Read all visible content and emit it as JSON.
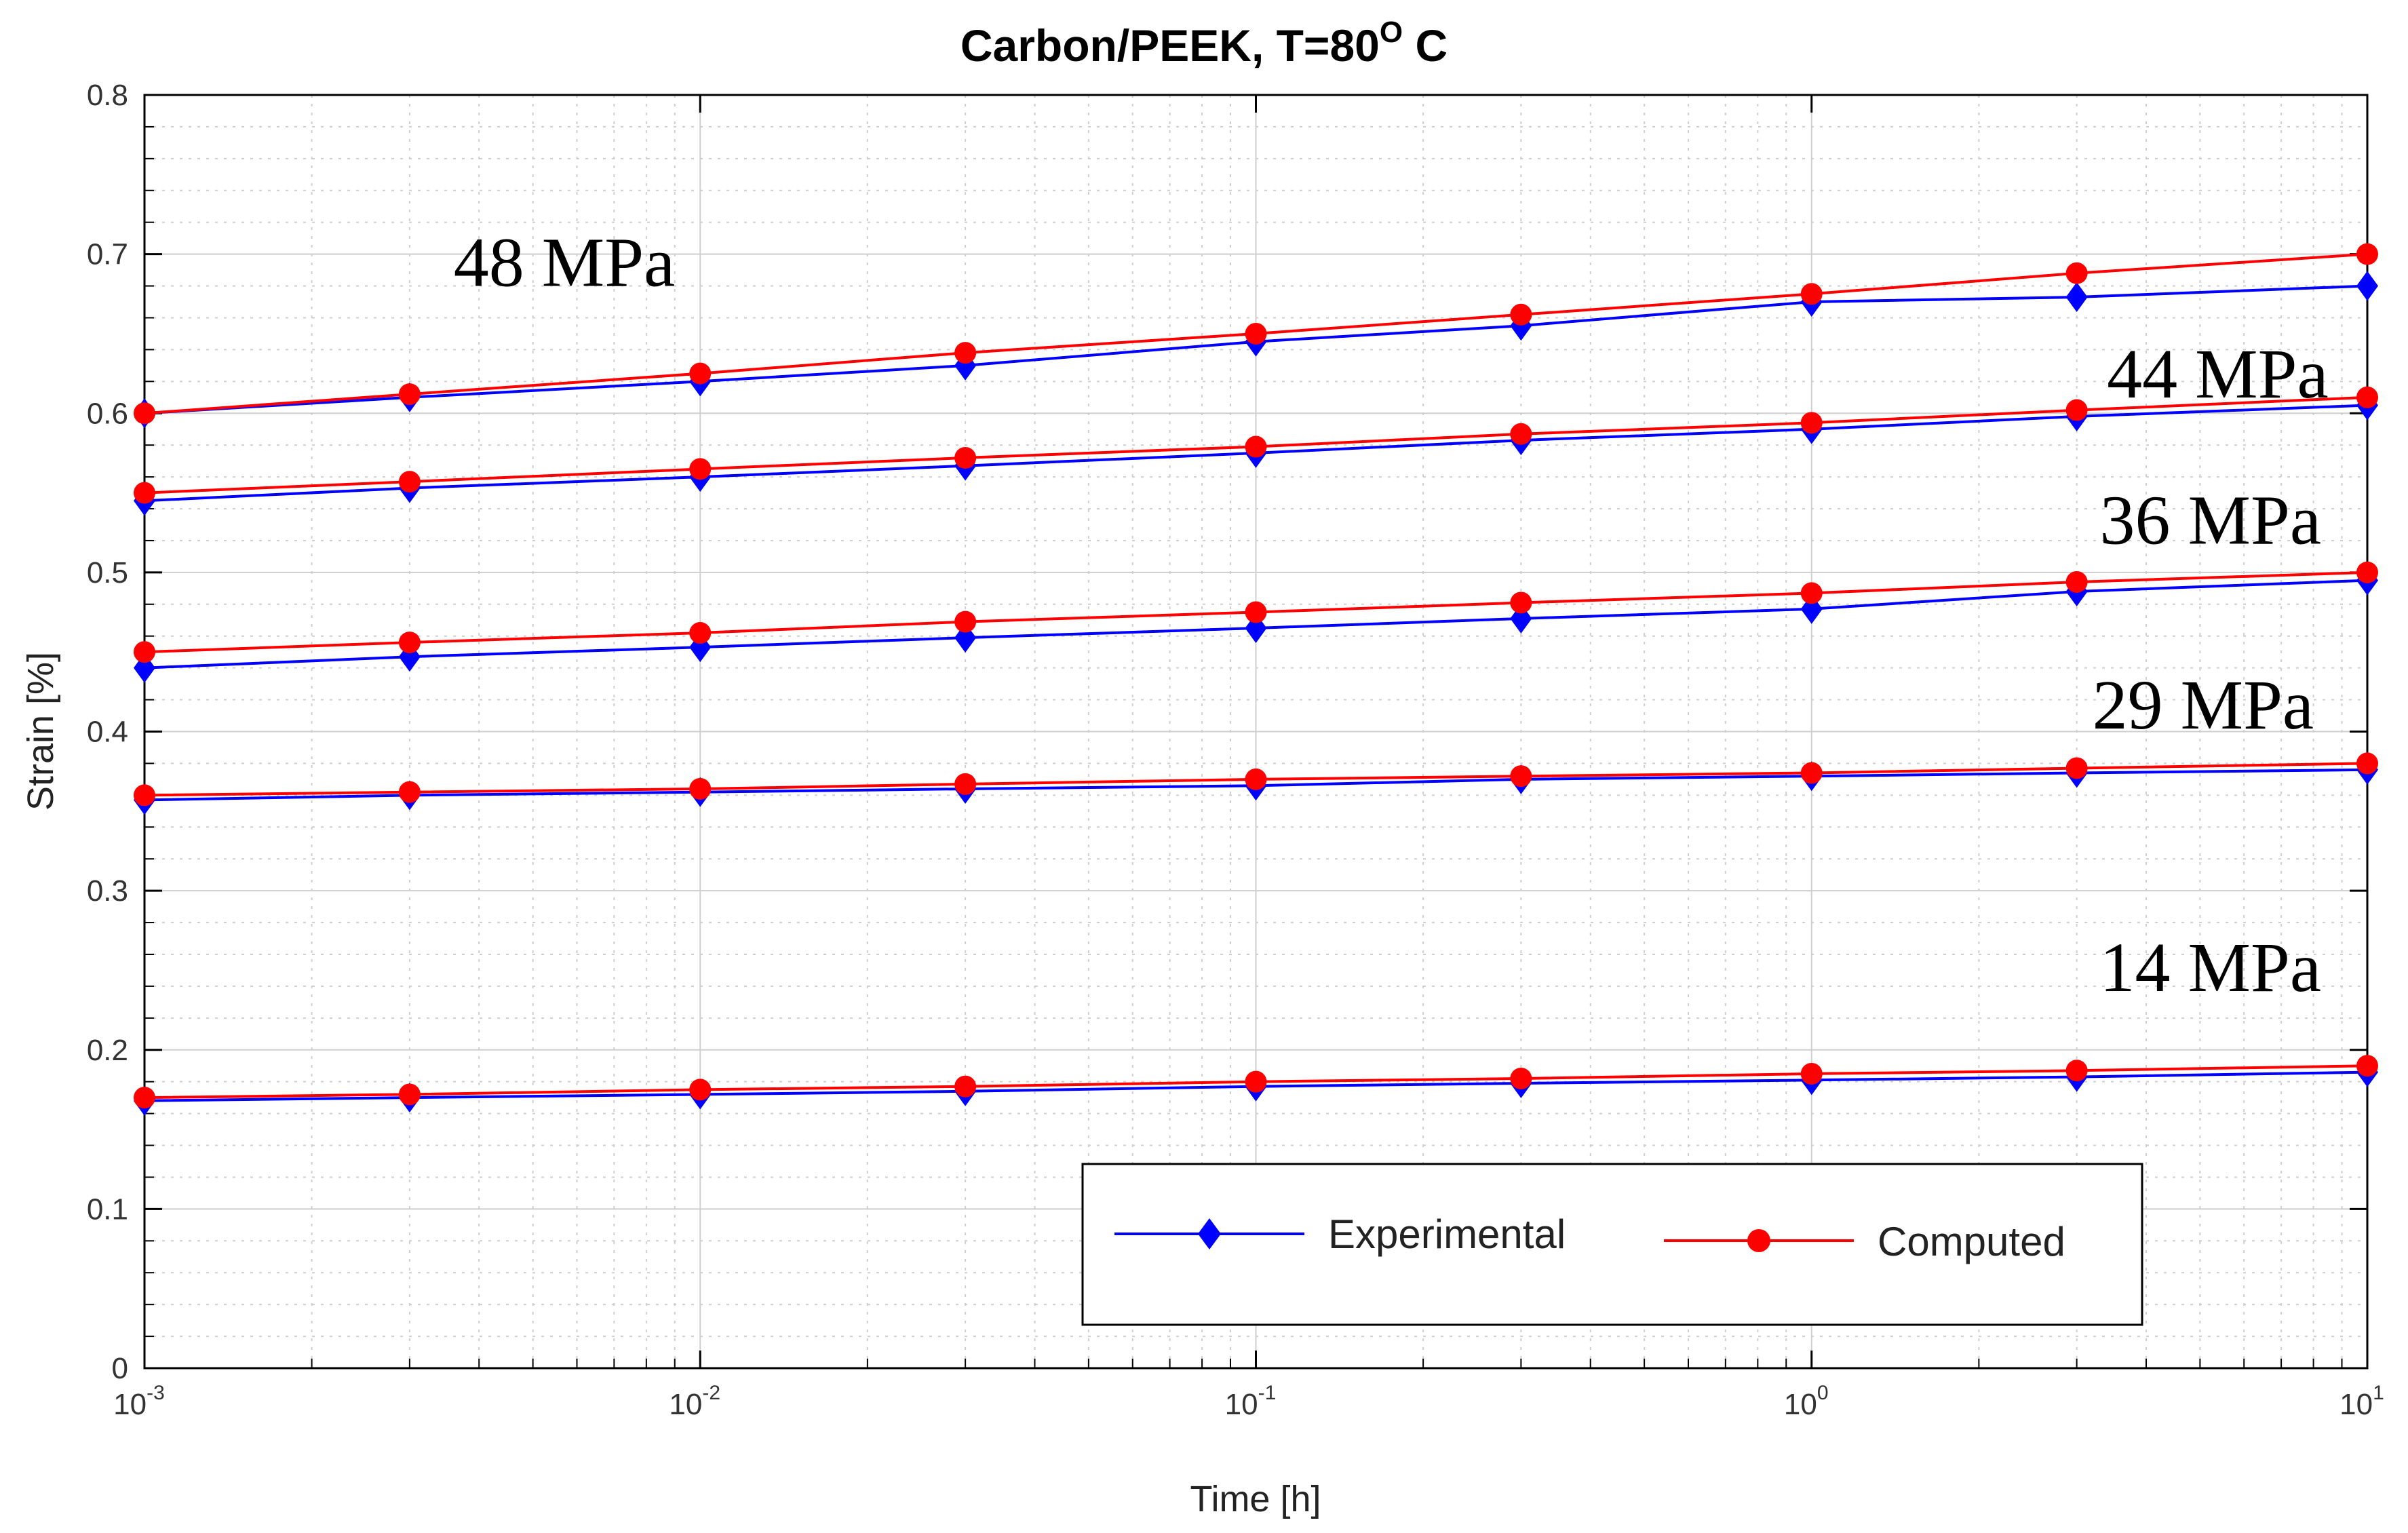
{
  "chart_data": {
    "type": "line",
    "title": "Carbon/PEEK, T=80",
    "title_superscript": "O",
    "title_suffix": " C",
    "xlabel": "Time [h]",
    "ylabel": "Strain [%]",
    "xscale": "log",
    "xlim": [
      0.001,
      10
    ],
    "ylim": [
      0,
      0.8
    ],
    "grid": true,
    "x": [
      0.001,
      0.003,
      0.01,
      0.03,
      0.1,
      0.3,
      1,
      3,
      10
    ],
    "x_ticks": [
      {
        "base": "10",
        "exp": "-3"
      },
      {
        "base": "10",
        "exp": "-2"
      },
      {
        "base": "10",
        "exp": "-1"
      },
      {
        "base": "10",
        "exp": "0"
      },
      {
        "base": "10",
        "exp": "1"
      }
    ],
    "y_ticks": [
      "0",
      "0.1",
      "0.2",
      "0.3",
      "0.4",
      "0.5",
      "0.6",
      "0.7",
      "0.8"
    ],
    "series": [
      {
        "name": "Experimental",
        "stress": "48 MPa",
        "values": [
          0.6,
          0.61,
          0.62,
          0.63,
          0.645,
          0.655,
          0.67,
          0.673,
          0.68
        ]
      },
      {
        "name": "Computed",
        "stress": "48 MPa",
        "values": [
          0.6,
          0.612,
          0.625,
          0.638,
          0.65,
          0.662,
          0.675,
          0.688,
          0.7
        ]
      },
      {
        "name": "Experimental",
        "stress": "44 MPa",
        "values": [
          0.545,
          0.553,
          0.56,
          0.567,
          0.575,
          0.583,
          0.59,
          0.598,
          0.605
        ]
      },
      {
        "name": "Computed",
        "stress": "44 MPa",
        "values": [
          0.55,
          0.557,
          0.565,
          0.572,
          0.579,
          0.587,
          0.594,
          0.602,
          0.61
        ]
      },
      {
        "name": "Experimental",
        "stress": "36 MPa",
        "values": [
          0.44,
          0.447,
          0.453,
          0.459,
          0.465,
          0.471,
          0.477,
          0.488,
          0.495
        ]
      },
      {
        "name": "Computed",
        "stress": "36 MPa",
        "values": [
          0.45,
          0.456,
          0.462,
          0.469,
          0.475,
          0.481,
          0.487,
          0.494,
          0.5
        ]
      },
      {
        "name": "Experimental",
        "stress": "29 MPa",
        "values": [
          0.357,
          0.36,
          0.362,
          0.364,
          0.366,
          0.37,
          0.372,
          0.374,
          0.376
        ]
      },
      {
        "name": "Computed",
        "stress": "29 MPa",
        "values": [
          0.36,
          0.362,
          0.364,
          0.367,
          0.37,
          0.372,
          0.374,
          0.377,
          0.38
        ]
      },
      {
        "name": "Experimental",
        "stress": "14 MPa",
        "values": [
          0.168,
          0.17,
          0.172,
          0.174,
          0.177,
          0.179,
          0.181,
          0.183,
          0.186
        ]
      },
      {
        "name": "Computed",
        "stress": "14 MPa",
        "values": [
          0.17,
          0.172,
          0.175,
          0.177,
          0.18,
          0.182,
          0.185,
          0.187,
          0.19
        ]
      }
    ],
    "annotations": [
      {
        "text": "48 MPa",
        "x": 0.0036,
        "y": 0.68
      },
      {
        "text": "44 MPa",
        "x": 3.4,
        "y": 0.61
      },
      {
        "text": "36 MPa",
        "x": 3.3,
        "y": 0.518
      },
      {
        "text": "29 MPa",
        "x": 3.2,
        "y": 0.402
      },
      {
        "text": "14 MPa",
        "x": 3.3,
        "y": 0.237
      }
    ],
    "legend": {
      "position": "bottom-right",
      "entries": [
        {
          "label": "Experimental",
          "color": "#0000ff",
          "marker": "diamond"
        },
        {
          "label": "Computed",
          "color": "#ff0000",
          "marker": "circle"
        }
      ]
    },
    "colors": {
      "experimental": "#0000ff",
      "computed": "#ff0000",
      "grid": "#cfcfcf",
      "axis": "#000000"
    }
  }
}
